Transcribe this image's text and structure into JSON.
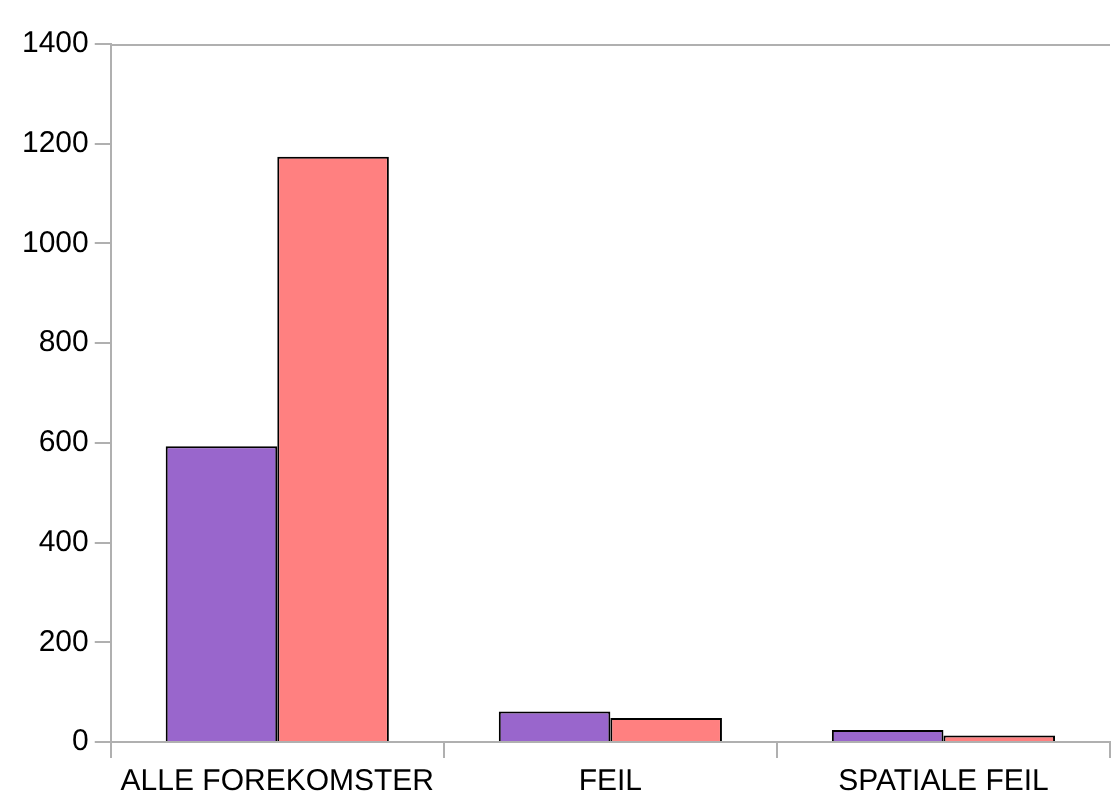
{
  "chart_data": {
    "type": "bar",
    "categories": [
      "ALLE FOREKOMSTER",
      "FEIL",
      "SPATIALE FEIL"
    ],
    "series": [
      {
        "color": "#9966cc",
        "values": [
          593,
          61,
          24
        ]
      },
      {
        "color": "#ff8080",
        "values": [
          1174,
          48,
          13
        ]
      }
    ],
    "ylim": [
      0,
      1400
    ],
    "yticks": [
      0,
      200,
      400,
      600,
      800,
      1000,
      1200,
      1400
    ],
    "grid": false,
    "legend": false
  }
}
